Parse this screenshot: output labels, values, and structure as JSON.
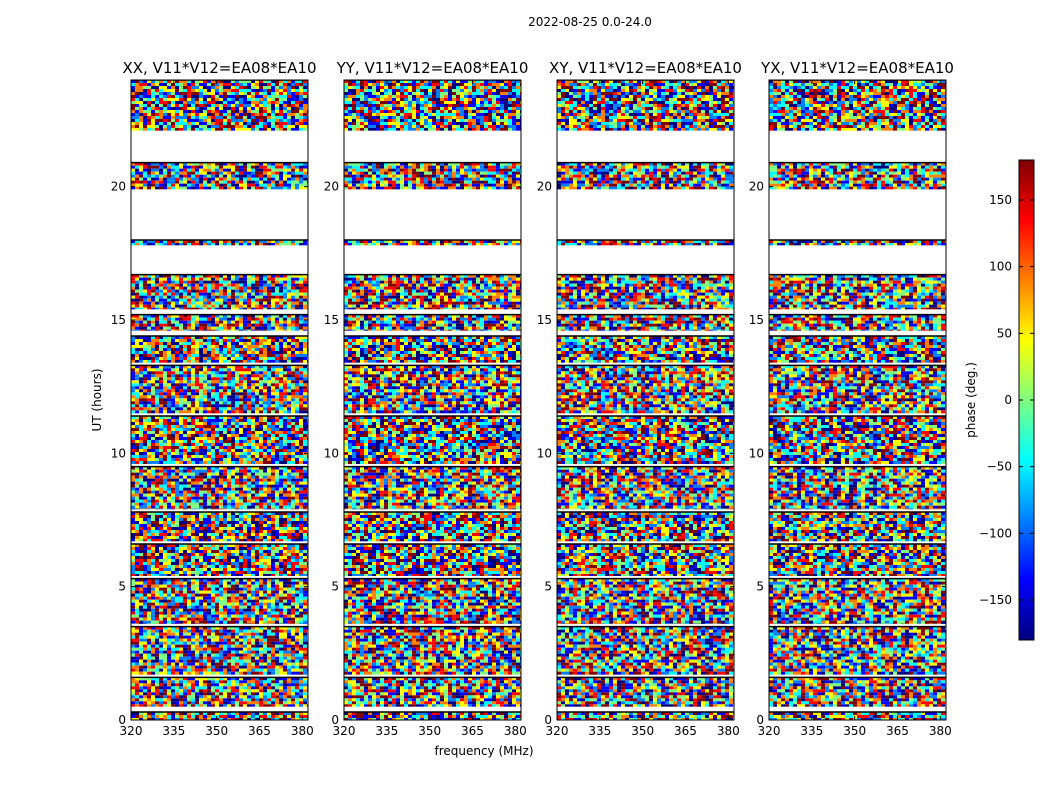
{
  "figure": {
    "suptitle": "2022-08-25 0.0-24.0"
  },
  "chart_data": [
    {
      "type": "heatmap",
      "title": "XX, V11*V12=EA08*EA10",
      "xlabel": "frequency (MHz)",
      "ylabel": "UT (hours)",
      "xlim": [
        320,
        382
      ],
      "ylim": [
        0,
        24
      ],
      "xticks": [
        "320",
        "335",
        "350",
        "365",
        "380"
      ],
      "yticks": [
        "0",
        "5",
        "10",
        "15",
        "20"
      ]
    },
    {
      "type": "heatmap",
      "title": "YY, V11*V12=EA08*EA10",
      "xlabel": "frequency (MHz)",
      "ylabel": "UT (hours)",
      "xlim": [
        320,
        382
      ],
      "ylim": [
        0,
        24
      ],
      "xticks": [
        "320",
        "335",
        "350",
        "365",
        "380"
      ],
      "yticks": [
        "0",
        "5",
        "10",
        "15",
        "20"
      ]
    },
    {
      "type": "heatmap",
      "title": "XY, V11*V12=EA08*EA10",
      "xlabel": "frequency (MHz)",
      "ylabel": "UT (hours)",
      "xlim": [
        320,
        382
      ],
      "ylim": [
        0,
        24
      ],
      "xticks": [
        "320",
        "335",
        "350",
        "365",
        "380"
      ],
      "yticks": [
        "0",
        "5",
        "10",
        "15",
        "20"
      ]
    },
    {
      "type": "heatmap",
      "title": "YX, V11*V12=EA08*EA10",
      "xlabel": "frequency (MHz)",
      "ylabel": "UT (hours)",
      "xlim": [
        320,
        382
      ],
      "ylim": [
        0,
        24
      ],
      "xticks": [
        "320",
        "335",
        "350",
        "365",
        "380"
      ],
      "yticks": [
        "0",
        "5",
        "10",
        "15",
        "20"
      ]
    }
  ],
  "axes": {
    "xlabel": "frequency (MHz)",
    "ylabel": "UT (hours)"
  },
  "colorbar": {
    "label": "phase (deg.)",
    "colormap": "jet",
    "range": [
      -180,
      180
    ],
    "ticks": [
      "150",
      "100",
      "50",
      "0",
      "−50",
      "−100",
      "−150"
    ],
    "tick_values": [
      150,
      100,
      50,
      0,
      -50,
      -100,
      -150
    ]
  },
  "data_intervals_ut_hours": [
    [
      0.0,
      0.3
    ],
    [
      0.5,
      1.6
    ],
    [
      1.7,
      3.5
    ],
    [
      3.6,
      5.3
    ],
    [
      5.4,
      6.6
    ],
    [
      6.7,
      7.8
    ],
    [
      7.9,
      9.5
    ],
    [
      9.6,
      11.4
    ],
    [
      11.5,
      13.3
    ],
    [
      13.4,
      14.4
    ],
    [
      14.6,
      15.2
    ],
    [
      15.4,
      16.7
    ],
    [
      17.8,
      18.0
    ],
    [
      19.9,
      20.9
    ],
    [
      22.1,
      24.0
    ]
  ],
  "palette": {
    "jet": [
      "#00007f",
      "#0000ff",
      "#007fff",
      "#00ffff",
      "#7fff7f",
      "#ffff00",
      "#ff7f00",
      "#ff0000",
      "#7f0000"
    ]
  }
}
